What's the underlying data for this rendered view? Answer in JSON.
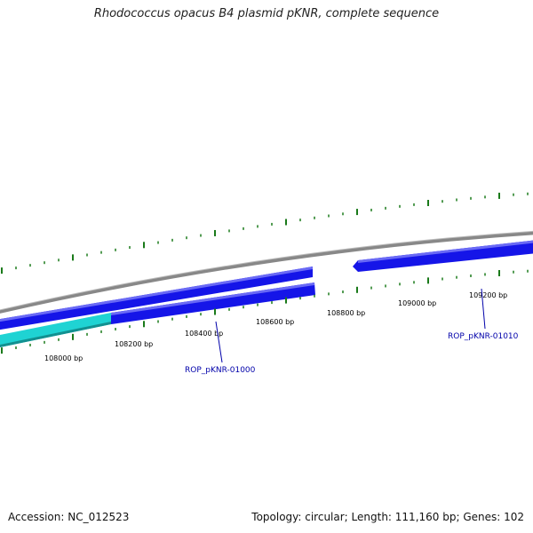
{
  "title": "Rhodococcus opacus B4 plasmid pKNR, complete sequence",
  "ticks": [
    "108000 bp",
    "108200 bp",
    "108400 bp",
    "108600 bp",
    "108800 bp",
    "109000 bp",
    "109200 bp"
  ],
  "genes": [
    "ROP_pKNR-01000",
    "ROP_pKNR-01010"
  ],
  "footer": {
    "accession": "Accession: NC_012523",
    "summary": "Topology: circular; Length: 111,160 bp; Genes: 102"
  },
  "colors": {
    "backbone": "#888888",
    "gene_forward": "#1515e8",
    "gene_reverse": "#1515e8",
    "cds_highlight": "#1fd3d3",
    "tick": "#1a7a1a",
    "gene_label": "#0000aa"
  }
}
